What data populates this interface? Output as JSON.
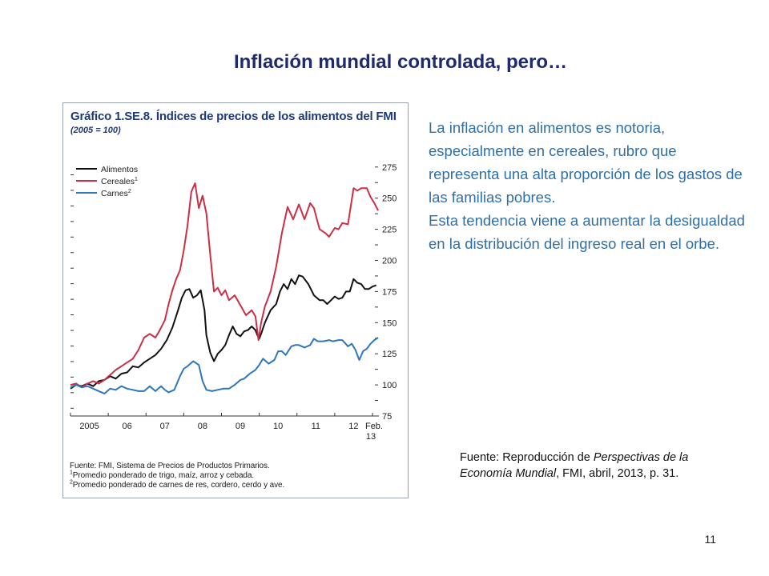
{
  "slide": {
    "title": "Inflación mundial controlada, pero…",
    "page_number": "11"
  },
  "figure": {
    "title": "Gráfico 1.SE.8. Índices de precios de los alimentos del FMI",
    "subtitle": "(2005 = 100)",
    "notes": {
      "source": "Fuente: FMI, Sistema de Precios de Productos Primarios.",
      "note1_mark": "1",
      "note1": "Promedio ponderado de trigo, maíz, arroz y cebada.",
      "note2_mark": "2",
      "note2": "Promedio ponderado de carnes de res, cordero, cerdo y ave."
    }
  },
  "chart_data": {
    "type": "line",
    "title": "Gráfico 1.SE.8. Índices de precios de los alimentos del FMI",
    "subtitle": "(2005 = 100)",
    "x_tick_labels": [
      "2005",
      "06",
      "07",
      "08",
      "09",
      "10",
      "11",
      "12",
      "Feb.",
      "13"
    ],
    "y_tick_labels": [
      "75",
      "100",
      "125",
      "150",
      "175",
      "200",
      "225",
      "250",
      "275"
    ],
    "ylim": [
      75,
      280
    ],
    "xlim": [
      2005.0,
      2013.17
    ],
    "y_axis_side": "right",
    "legend_position": "top-left",
    "grid": false,
    "series": [
      {
        "name": "Alimentos",
        "color": "#111111",
        "points": [
          [
            2005.0,
            97
          ],
          [
            2005.15,
            100
          ],
          [
            2005.3,
            99
          ],
          [
            2005.45,
            101
          ],
          [
            2005.6,
            99
          ],
          [
            2005.75,
            103
          ],
          [
            2005.9,
            104
          ],
          [
            2006.05,
            107
          ],
          [
            2006.2,
            105
          ],
          [
            2006.35,
            109
          ],
          [
            2006.5,
            110
          ],
          [
            2006.65,
            115
          ],
          [
            2006.8,
            114
          ],
          [
            2006.95,
            118
          ],
          [
            2007.1,
            121
          ],
          [
            2007.25,
            124
          ],
          [
            2007.4,
            129
          ],
          [
            2007.55,
            136
          ],
          [
            2007.7,
            146
          ],
          [
            2007.85,
            160
          ],
          [
            2007.95,
            170
          ],
          [
            2008.05,
            176
          ],
          [
            2008.15,
            177
          ],
          [
            2008.25,
            170
          ],
          [
            2008.35,
            172
          ],
          [
            2008.45,
            176
          ],
          [
            2008.55,
            160
          ],
          [
            2008.6,
            140
          ],
          [
            2008.7,
            126
          ],
          [
            2008.8,
            119
          ],
          [
            2008.9,
            125
          ],
          [
            2009.0,
            128
          ],
          [
            2009.1,
            132
          ],
          [
            2009.2,
            140
          ],
          [
            2009.3,
            147
          ],
          [
            2009.4,
            141
          ],
          [
            2009.5,
            139
          ],
          [
            2009.6,
            143
          ],
          [
            2009.7,
            144
          ],
          [
            2009.8,
            147
          ],
          [
            2009.9,
            144
          ],
          [
            2009.95,
            140
          ],
          [
            2010.0,
            137
          ],
          [
            2010.05,
            141
          ],
          [
            2010.15,
            150
          ],
          [
            2010.3,
            160
          ],
          [
            2010.45,
            165
          ],
          [
            2010.55,
            175
          ],
          [
            2010.65,
            181
          ],
          [
            2010.75,
            177
          ],
          [
            2010.85,
            185
          ],
          [
            2010.95,
            181
          ],
          [
            2011.05,
            188
          ],
          [
            2011.15,
            187
          ],
          [
            2011.3,
            181
          ],
          [
            2011.45,
            172
          ],
          [
            2011.6,
            168
          ],
          [
            2011.7,
            168
          ],
          [
            2011.8,
            165
          ],
          [
            2011.9,
            168
          ],
          [
            2012.0,
            171
          ],
          [
            2012.1,
            169
          ],
          [
            2012.2,
            170
          ],
          [
            2012.3,
            175
          ],
          [
            2012.4,
            175
          ],
          [
            2012.5,
            185
          ],
          [
            2012.6,
            182
          ],
          [
            2012.7,
            181
          ],
          [
            2012.8,
            177
          ],
          [
            2012.9,
            177
          ],
          [
            2013.0,
            179
          ],
          [
            2013.1,
            180
          ]
        ]
      },
      {
        "name": "Cereales",
        "name_mark": "1",
        "color": "#cc2e45",
        "points": [
          [
            2005.0,
            100
          ],
          [
            2005.15,
            101
          ],
          [
            2005.3,
            98
          ],
          [
            2005.45,
            101
          ],
          [
            2005.6,
            103
          ],
          [
            2005.75,
            101
          ],
          [
            2005.9,
            104
          ],
          [
            2006.05,
            108
          ],
          [
            2006.2,
            112
          ],
          [
            2006.35,
            115
          ],
          [
            2006.5,
            118
          ],
          [
            2006.65,
            121
          ],
          [
            2006.8,
            128
          ],
          [
            2006.95,
            138
          ],
          [
            2007.1,
            141
          ],
          [
            2007.25,
            138
          ],
          [
            2007.35,
            143
          ],
          [
            2007.5,
            152
          ],
          [
            2007.6,
            165
          ],
          [
            2007.7,
            176
          ],
          [
            2007.8,
            185
          ],
          [
            2007.9,
            192
          ],
          [
            2008.0,
            208
          ],
          [
            2008.1,
            228
          ],
          [
            2008.2,
            255
          ],
          [
            2008.3,
            262
          ],
          [
            2008.4,
            242
          ],
          [
            2008.5,
            252
          ],
          [
            2008.6,
            238
          ],
          [
            2008.7,
            205
          ],
          [
            2008.8,
            175
          ],
          [
            2008.9,
            178
          ],
          [
            2009.0,
            172
          ],
          [
            2009.1,
            176
          ],
          [
            2009.2,
            168
          ],
          [
            2009.35,
            172
          ],
          [
            2009.5,
            164
          ],
          [
            2009.65,
            156
          ],
          [
            2009.8,
            160
          ],
          [
            2009.9,
            155
          ],
          [
            2009.98,
            136
          ],
          [
            2010.05,
            150
          ],
          [
            2010.15,
            163
          ],
          [
            2010.3,
            175
          ],
          [
            2010.45,
            195
          ],
          [
            2010.6,
            222
          ],
          [
            2010.75,
            243
          ],
          [
            2010.9,
            233
          ],
          [
            2011.05,
            245
          ],
          [
            2011.2,
            233
          ],
          [
            2011.35,
            246
          ],
          [
            2011.45,
            242
          ],
          [
            2011.6,
            225
          ],
          [
            2011.75,
            222
          ],
          [
            2011.85,
            219
          ],
          [
            2012.0,
            226
          ],
          [
            2012.1,
            225
          ],
          [
            2012.2,
            230
          ],
          [
            2012.35,
            229
          ],
          [
            2012.5,
            258
          ],
          [
            2012.6,
            256
          ],
          [
            2012.7,
            258
          ],
          [
            2012.85,
            258
          ],
          [
            2012.95,
            251
          ],
          [
            2013.05,
            246
          ],
          [
            2013.15,
            240
          ]
        ]
      },
      {
        "name": "Carnes",
        "name_mark": "2",
        "color": "#2e76bd",
        "points": [
          [
            2005.0,
            98
          ],
          [
            2005.15,
            100
          ],
          [
            2005.3,
            98
          ],
          [
            2005.45,
            99
          ],
          [
            2005.6,
            97
          ],
          [
            2005.75,
            95
          ],
          [
            2005.9,
            93
          ],
          [
            2006.05,
            97
          ],
          [
            2006.2,
            96
          ],
          [
            2006.35,
            99
          ],
          [
            2006.5,
            97
          ],
          [
            2006.65,
            96
          ],
          [
            2006.8,
            95
          ],
          [
            2006.95,
            95
          ],
          [
            2007.1,
            99
          ],
          [
            2007.25,
            95
          ],
          [
            2007.4,
            99
          ],
          [
            2007.5,
            96
          ],
          [
            2007.6,
            94
          ],
          [
            2007.75,
            96
          ],
          [
            2007.9,
            107
          ],
          [
            2008.0,
            113
          ],
          [
            2008.1,
            115
          ],
          [
            2008.25,
            119
          ],
          [
            2008.4,
            116
          ],
          [
            2008.5,
            103
          ],
          [
            2008.6,
            96
          ],
          [
            2008.75,
            95
          ],
          [
            2008.9,
            96
          ],
          [
            2009.05,
            97
          ],
          [
            2009.2,
            97
          ],
          [
            2009.35,
            100
          ],
          [
            2009.5,
            104
          ],
          [
            2009.6,
            105
          ],
          [
            2009.75,
            109
          ],
          [
            2009.9,
            112
          ],
          [
            2010.0,
            116
          ],
          [
            2010.1,
            121
          ],
          [
            2010.25,
            117
          ],
          [
            2010.4,
            120
          ],
          [
            2010.5,
            127
          ],
          [
            2010.6,
            127
          ],
          [
            2010.7,
            124
          ],
          [
            2010.85,
            131
          ],
          [
            2010.95,
            132
          ],
          [
            2011.05,
            132
          ],
          [
            2011.2,
            130
          ],
          [
            2011.35,
            132
          ],
          [
            2011.45,
            137
          ],
          [
            2011.55,
            135
          ],
          [
            2011.7,
            135
          ],
          [
            2011.85,
            136
          ],
          [
            2011.95,
            135
          ],
          [
            2012.1,
            136
          ],
          [
            2012.2,
            136
          ],
          [
            2012.35,
            131
          ],
          [
            2012.45,
            133
          ],
          [
            2012.55,
            128
          ],
          [
            2012.65,
            120
          ],
          [
            2012.75,
            127
          ],
          [
            2012.85,
            129
          ],
          [
            2012.95,
            133
          ],
          [
            2013.05,
            136
          ],
          [
            2013.15,
            138
          ]
        ]
      }
    ]
  },
  "body_text": {
    "paragraph1": "La inflación en alimentos es notoria, especialmente en cereales, rubro que representa una alta proporción de los gastos de las familias pobres.",
    "paragraph2": "Esta tendencia viene a aumentar la desigualdad en la distribución del ingreso real en el orbe."
  },
  "source_citation": {
    "prefix": "Fuente: Reproducción de",
    "work_title": "Perspectivas de la Economía Mundial",
    "suffix": ", FMI, abril, 2013, p. 31."
  }
}
